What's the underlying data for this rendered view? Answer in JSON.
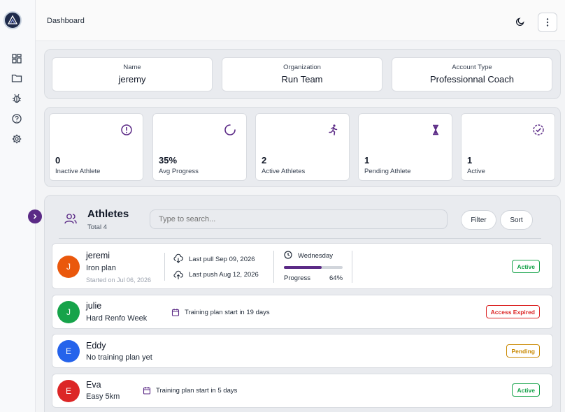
{
  "topbar": {
    "breadcrumb": "Dashboard"
  },
  "account": {
    "name_label": "Name",
    "name_value": "jeremy",
    "org_label": "Organization",
    "org_value": "Run Team",
    "type_label": "Account Type",
    "type_value": "Professionnal Coach"
  },
  "stats": [
    {
      "value": "0",
      "label": "Inactive Athlete",
      "icon": "alert-circle-icon"
    },
    {
      "value": "35%",
      "label": "Avg Progress",
      "icon": "loader-icon"
    },
    {
      "value": "2",
      "label": "Active Athletes",
      "icon": "running-icon"
    },
    {
      "value": "1",
      "label": "Pending Athlete",
      "icon": "hourglass-icon"
    },
    {
      "value": "1",
      "label": "Active",
      "icon": "check-circle-icon"
    }
  ],
  "athletes": {
    "title": "Athletes",
    "total": "Total 4",
    "search_placeholder": "Type to search...",
    "filter_label": "Filter",
    "sort_label": "Sort",
    "rows": [
      {
        "initial": "J",
        "name": "jeremi",
        "plan": "Iron plan",
        "started": "Started on Jul 06, 2026",
        "last_pull": "Last pull Sep 09, 2026",
        "last_push": "Last push Aug 12, 2026",
        "day": "Wednesday",
        "progress_label": "Progress",
        "progress_value": "64%",
        "progress_fraction": 0.64,
        "status": "Active",
        "avatar_color": "#ea580c",
        "status_color": "#16a34a"
      },
      {
        "initial": "J",
        "name": "julie",
        "plan": "Hard Renfo Week",
        "training_note": "Training plan start in 19 days",
        "status": "Access Expired",
        "avatar_color": "#16a34a",
        "status_color": "#dc2626"
      },
      {
        "initial": "E",
        "name": "Eddy",
        "plan": "No training plan yet",
        "status": "Pending",
        "avatar_color": "#2563eb",
        "status_color": "#ca8a04"
      },
      {
        "initial": "E",
        "name": "Eva",
        "plan": "Easy 5km",
        "training_note": "Training plan start in 5 days",
        "status": "Active",
        "avatar_color": "#dc2626",
        "status_color": "#16a34a"
      }
    ]
  },
  "colors": {
    "accent": "#5b2a86"
  }
}
